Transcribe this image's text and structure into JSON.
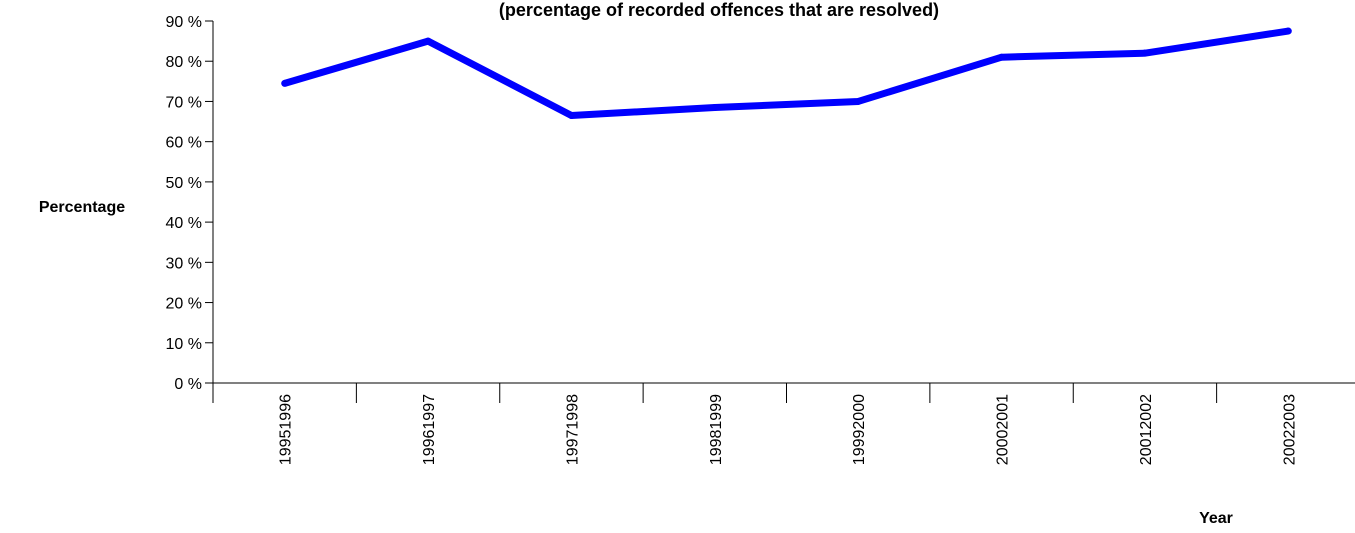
{
  "chart_data": {
    "type": "line",
    "title": "(percentage of recorded offences that are resolved)",
    "xlabel": "Year",
    "ylabel": "Percentage",
    "categories": [
      "19951996",
      "19961997",
      "19971998",
      "19981999",
      "19992000",
      "20002001",
      "20012002",
      "20022003"
    ],
    "series": [
      {
        "values": [
          74.5,
          85,
          66.5,
          68.5,
          70,
          81,
          82,
          87.5
        ]
      }
    ],
    "ylim": [
      0,
      90
    ],
    "yticks": [
      "0 %",
      "10 %",
      "20 %",
      "30 %",
      "40 %",
      "50 %",
      "60 %",
      "70 %",
      "80 %",
      "90 %"
    ],
    "grid": false,
    "line_color": "#0000ff"
  }
}
